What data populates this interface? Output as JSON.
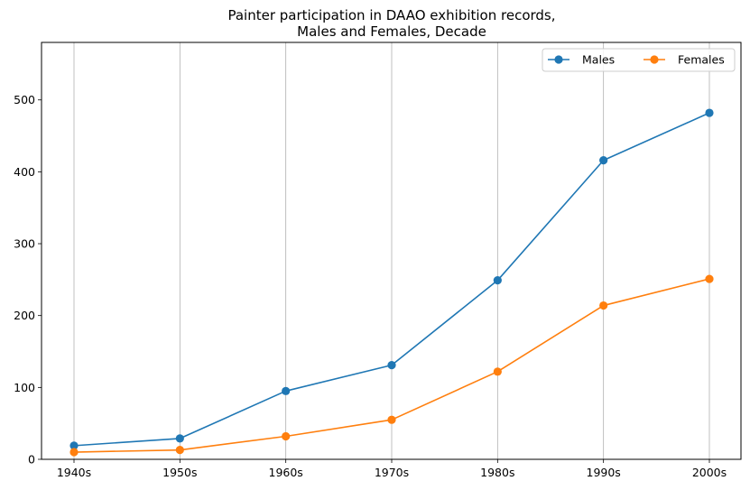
{
  "chart_data": {
    "type": "line",
    "title": "Painter participation in DAAO exhibition records,\nMales and Females, Decade",
    "xlabel": "",
    "ylabel": "",
    "categories": [
      "1940s",
      "1950s",
      "1960s",
      "1970s",
      "1980s",
      "1990s",
      "2000s"
    ],
    "series": [
      {
        "name": "Males",
        "color": "#1f77b4",
        "values": [
          19,
          29,
          95,
          131,
          249,
          416,
          482
        ]
      },
      {
        "name": "Females",
        "color": "#ff7f0e",
        "values": [
          10,
          13,
          32,
          55,
          122,
          214,
          251
        ]
      }
    ],
    "ylim": [
      0,
      580
    ],
    "yticks": [
      0,
      100,
      200,
      300,
      400,
      500
    ],
    "grid": "vertical",
    "legend": {
      "placement": "top-right",
      "columns": 2
    }
  }
}
